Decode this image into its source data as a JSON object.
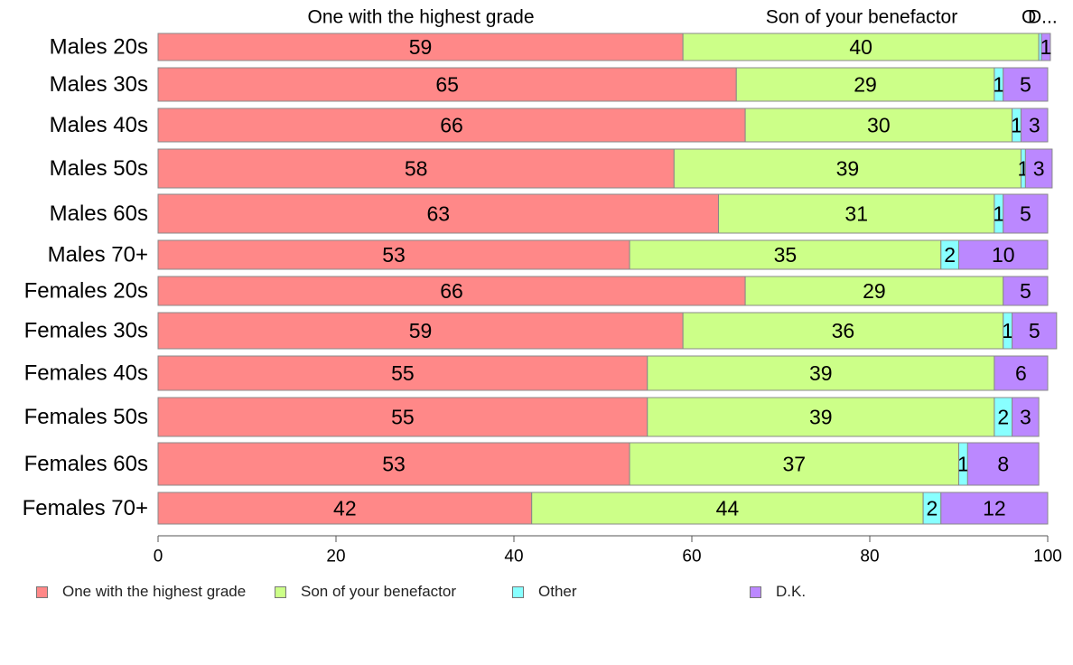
{
  "chart_data": {
    "type": "bar",
    "orientation": "horizontal",
    "stacked": true,
    "categories": [
      "Males 20s",
      "Males 30s",
      "Males 40s",
      "Males 50s",
      "Males 60s",
      "Males 70+",
      "Females 20s",
      "Females 30s",
      "Females 40s",
      "Females 50s",
      "Females 60s",
      "Females 70+"
    ],
    "series": [
      {
        "name": "One with the highest grade",
        "color": "#ff8888",
        "values": [
          59,
          65,
          66,
          58,
          63,
          53,
          66,
          59,
          55,
          55,
          53,
          42
        ]
      },
      {
        "name": "Son of your benefactor",
        "color": "#ccff88",
        "values": [
          40,
          29,
          30,
          39,
          31,
          35,
          29,
          36,
          39,
          39,
          37,
          44
        ]
      },
      {
        "name": "Other",
        "color": "#88ffff",
        "values": [
          0.3,
          1,
          1,
          0.5,
          1,
          2,
          0,
          1,
          0,
          2,
          1,
          2
        ]
      },
      {
        "name": "D.K.",
        "color": "#bb88ff",
        "values": [
          1,
          5,
          3,
          3,
          5,
          10,
          5,
          5,
          6,
          3,
          8,
          12
        ]
      }
    ],
    "data_labels": [
      [
        "59",
        "40",
        "",
        "1"
      ],
      [
        "65",
        "29",
        "1",
        "5"
      ],
      [
        "66",
        "30",
        "1",
        "3"
      ],
      [
        "58",
        "39",
        "1",
        "3"
      ],
      [
        "63",
        "31",
        "1",
        "5"
      ],
      [
        "53",
        "35",
        "2",
        "10"
      ],
      [
        "66",
        "29",
        "",
        "5"
      ],
      [
        "59",
        "36",
        "1",
        "5"
      ],
      [
        "55",
        "39",
        "",
        "6"
      ],
      [
        "55",
        "39",
        "2",
        "3"
      ],
      [
        "53",
        "37",
        "1",
        "8"
      ],
      [
        "42",
        "44",
        "2",
        "12"
      ]
    ],
    "top_labels": [
      "One with the highest grade",
      "Son of your benefactor",
      "O",
      "D..."
    ],
    "xlim": [
      0,
      100
    ],
    "xticks": [
      0,
      20,
      40,
      60,
      80,
      100
    ],
    "grid": false,
    "legend_position": "bottom"
  }
}
